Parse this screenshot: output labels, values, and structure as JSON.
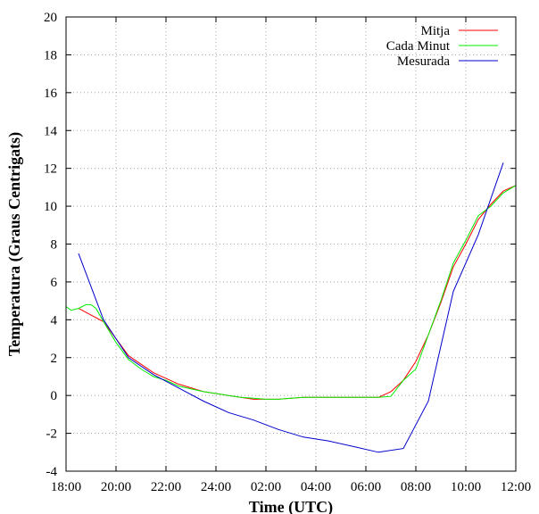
{
  "chart_data": {
    "type": "line",
    "xlabel": "Time (UTC)",
    "ylabel": "Temperatura (Graus Centrigats)",
    "xlim": [
      18,
      36
    ],
    "ylim": [
      -4,
      20
    ],
    "x_ticks": [
      {
        "value": 18,
        "label": "18:00"
      },
      {
        "value": 20,
        "label": "20:00"
      },
      {
        "value": 22,
        "label": "22:00"
      },
      {
        "value": 24,
        "label": "24:00"
      },
      {
        "value": 26,
        "label": "02:00"
      },
      {
        "value": 28,
        "label": "04:00"
      },
      {
        "value": 30,
        "label": "06:00"
      },
      {
        "value": 32,
        "label": "08:00"
      },
      {
        "value": 34,
        "label": "10:00"
      },
      {
        "value": 36,
        "label": "12:00"
      }
    ],
    "y_ticks": [
      -4,
      -2,
      0,
      2,
      4,
      6,
      8,
      10,
      12,
      14,
      16,
      18,
      20
    ],
    "grid": true,
    "legend_position": "top-right",
    "series": [
      {
        "name": "Mitja",
        "color": "#ff0000",
        "x": [
          18.5,
          19.5,
          20.5,
          21.5,
          22.5,
          23.5,
          24.5,
          25.5,
          26.5,
          27.5,
          28.5,
          29.5,
          30.5,
          31.0,
          31.5,
          32.0,
          32.5,
          33.0,
          33.5,
          34.0,
          34.5,
          35.0,
          35.5,
          36.0
        ],
        "values": [
          4.6,
          3.9,
          2.1,
          1.2,
          0.6,
          0.2,
          0.0,
          -0.2,
          -0.2,
          -0.1,
          -0.1,
          -0.1,
          -0.1,
          0.2,
          0.8,
          1.8,
          3.2,
          4.9,
          6.8,
          8.0,
          9.3,
          10.1,
          10.8,
          11.1
        ]
      },
      {
        "name": "Cada Minut",
        "color": "#00ee00",
        "x": [
          18.0,
          18.2,
          18.5,
          18.8,
          19.0,
          19.2,
          19.5,
          20.0,
          20.5,
          21.0,
          21.5,
          22.0,
          22.5,
          23.0,
          23.5,
          24.0,
          24.5,
          25.0,
          25.5,
          26.0,
          26.5,
          27.0,
          27.5,
          28.0,
          28.5,
          29.0,
          29.5,
          30.0,
          30.5,
          31.0,
          31.5,
          32.0,
          32.5,
          33.0,
          33.5,
          34.0,
          34.5,
          35.0,
          35.5,
          36.0
        ],
        "values": [
          4.7,
          4.5,
          4.6,
          4.8,
          4.8,
          4.6,
          3.9,
          2.8,
          1.9,
          1.4,
          1.0,
          0.8,
          0.5,
          0.35,
          0.2,
          0.1,
          0.0,
          -0.1,
          -0.15,
          -0.2,
          -0.2,
          -0.15,
          -0.1,
          -0.1,
          -0.1,
          -0.1,
          -0.1,
          -0.1,
          -0.1,
          -0.05,
          0.8,
          1.4,
          3.2,
          5.0,
          7.0,
          8.2,
          9.5,
          10.0,
          10.7,
          11.1
        ]
      },
      {
        "name": "Mesurada",
        "color": "#0000cc",
        "x": [
          18.5,
          19.5,
          20.5,
          21.5,
          22.5,
          23.5,
          24.5,
          25.5,
          26.5,
          27.5,
          28.5,
          29.5,
          30.5,
          31.5,
          32.5,
          33.5,
          34.5,
          35.5
        ],
        "values": [
          7.5,
          4.0,
          2.0,
          1.1,
          0.4,
          -0.3,
          -0.9,
          -1.3,
          -1.8,
          -2.2,
          -2.4,
          -2.7,
          -3.0,
          -2.8,
          -0.3,
          5.5,
          8.5,
          12.3
        ]
      }
    ]
  }
}
